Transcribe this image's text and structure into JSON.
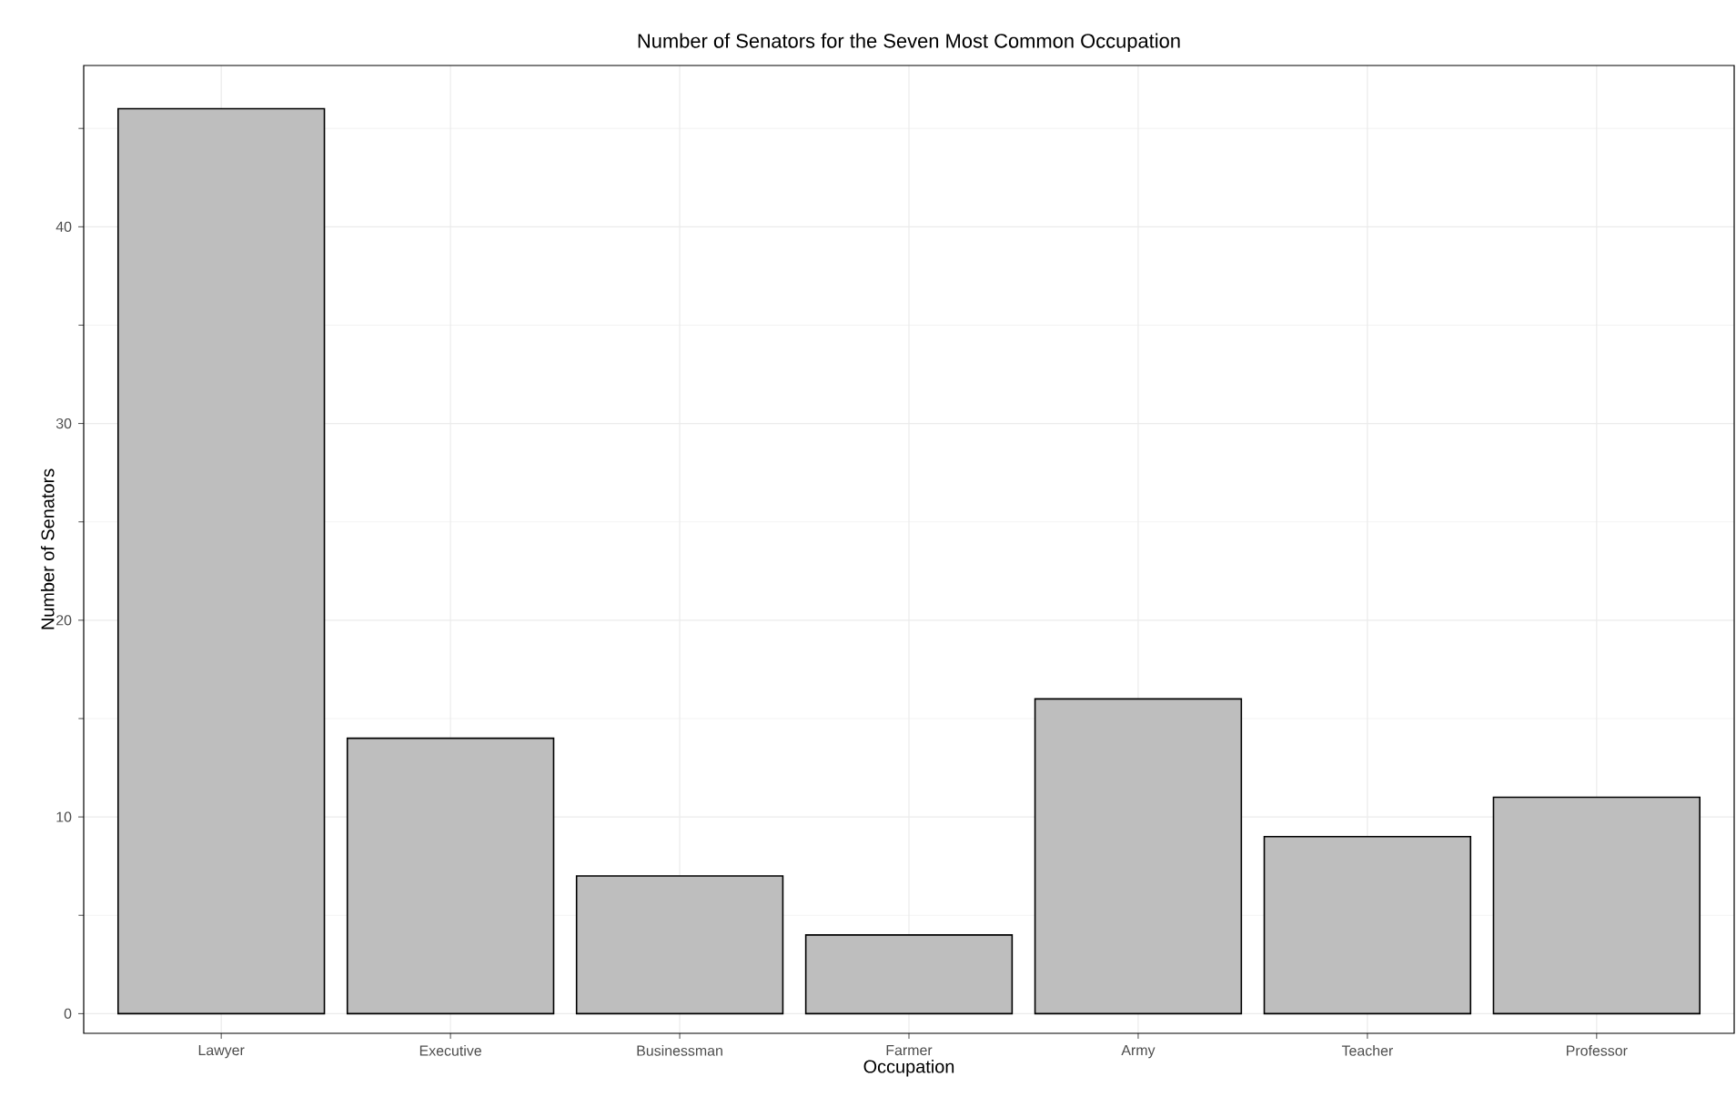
{
  "chart_data": {
    "type": "bar",
    "title": "Number of Senators for the Seven Most Common Occupation",
    "xlabel": "Occupation",
    "ylabel": "Number of Senators",
    "categories": [
      "Lawyer",
      "Executive",
      "Businessman",
      "Farmer",
      "Army",
      "Teacher",
      "Professor"
    ],
    "values": [
      46,
      14,
      7,
      4,
      16,
      9,
      11
    ],
    "color": "#bebebe",
    "ylim": [
      -1,
      48.2
    ],
    "yticks": [
      0,
      10,
      20,
      30,
      40
    ],
    "grid": true
  }
}
